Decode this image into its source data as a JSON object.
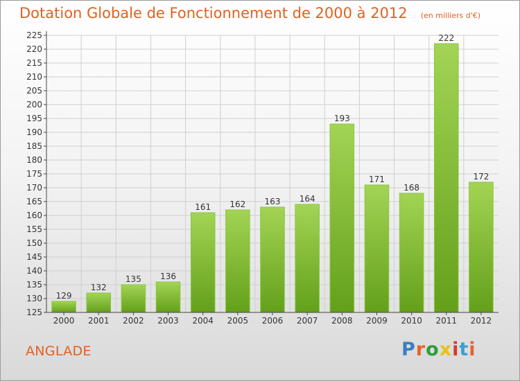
{
  "title": "Dotation Globale de Fonctionnement de 2000 à 2012",
  "unit": "(en milliers d'€)",
  "commune": "ANGLADE",
  "logo": {
    "text": "Proxiti",
    "letter_colors": [
      "#3a7fc1",
      "#e8622a",
      "#2f9e3a",
      "#e8c21a",
      "#d83a2a",
      "#3a9fd6",
      "#e8622a"
    ]
  },
  "colors": {
    "bar_light": "#a3d455",
    "bar_dark": "#63a01a",
    "accent": "#e2601f",
    "grid": "#cfcfcf",
    "axis": "#444444"
  },
  "chart_data": {
    "type": "bar",
    "categories": [
      "2000",
      "2001",
      "2002",
      "2003",
      "2004",
      "2005",
      "2006",
      "2007",
      "2008",
      "2009",
      "2010",
      "2011",
      "2012"
    ],
    "values": [
      129,
      132,
      135,
      136,
      161,
      162,
      163,
      164,
      193,
      171,
      168,
      222,
      172
    ],
    "ylim": [
      125,
      225
    ],
    "yticks": [
      125,
      130,
      135,
      140,
      145,
      150,
      155,
      160,
      165,
      170,
      175,
      180,
      185,
      190,
      195,
      200,
      205,
      210,
      215,
      220,
      225
    ],
    "grid": true,
    "data_labels": true
  }
}
